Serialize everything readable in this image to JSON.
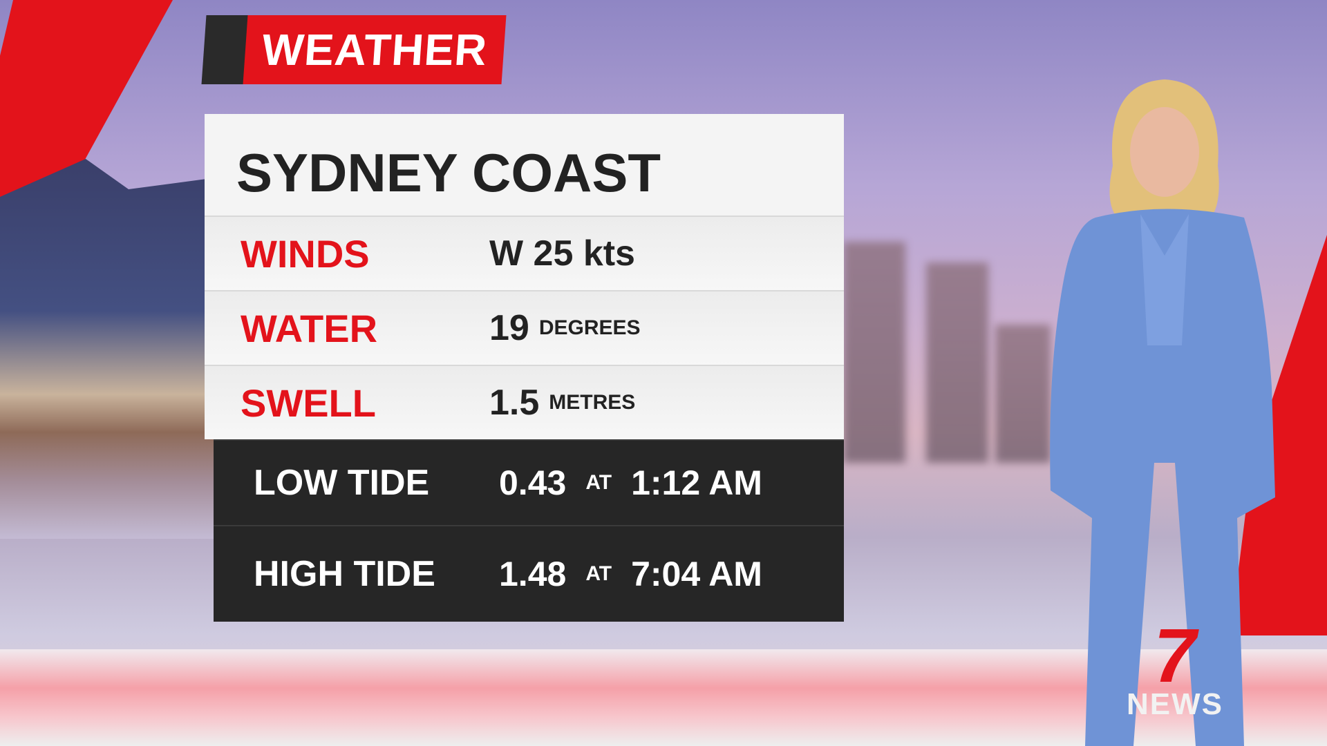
{
  "tag": {
    "label": "WEATHER"
  },
  "panel": {
    "title": "SYDNEY COAST",
    "rows": [
      {
        "label": "WINDS",
        "value": "W 25 kts",
        "unit": ""
      },
      {
        "label": "WATER",
        "value": "19",
        "unit": "DEGREES"
      },
      {
        "label": "SWELL",
        "value": "1.5",
        "unit": "METRES"
      }
    ],
    "tides": [
      {
        "label": "LOW TIDE",
        "height": "0.43",
        "at": "AT",
        "time": "1:12 AM"
      },
      {
        "label": "HIGH TIDE",
        "height": "1.48",
        "at": "AT",
        "time": "7:04 AM"
      }
    ]
  },
  "logo": {
    "number": "7",
    "text": "NEWS"
  },
  "colors": {
    "accent": "#e3131b",
    "dark": "#262626",
    "panel": "#f4f4f4",
    "suit": "#6f93d6"
  }
}
